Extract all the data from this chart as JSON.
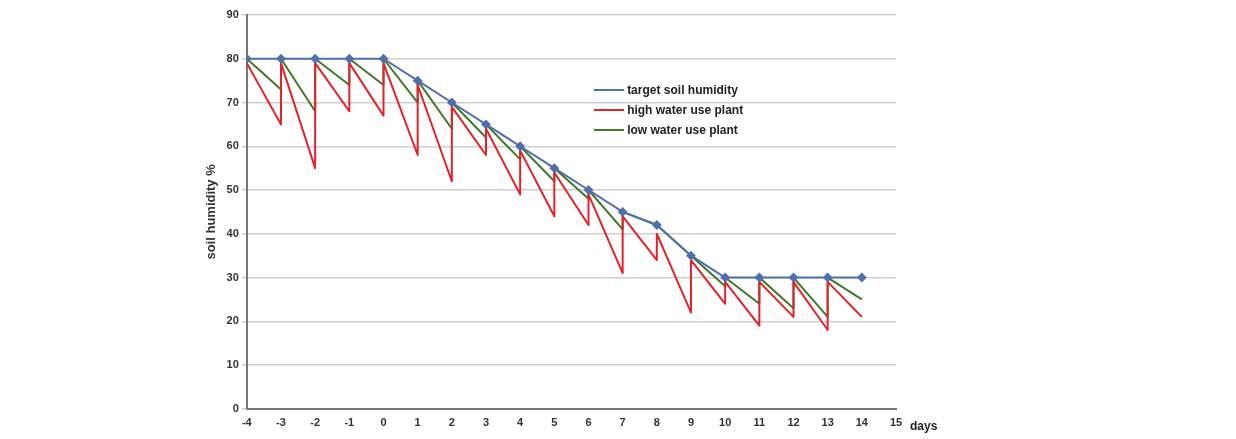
{
  "chart_data": {
    "type": "line",
    "xlabel": "days",
    "ylabel": "soil humidity %",
    "xlim": [
      -4,
      15
    ],
    "ylim": [
      0,
      90
    ],
    "xticks": [
      -4,
      -3,
      -2,
      -1,
      0,
      1,
      2,
      3,
      4,
      5,
      6,
      7,
      8,
      9,
      10,
      11,
      12,
      13,
      14,
      15
    ],
    "yticks": [
      0,
      10,
      20,
      30,
      40,
      50,
      60,
      70,
      80,
      90
    ],
    "grid": "y",
    "legend": "top right",
    "series": [
      {
        "name": "target soil humidity",
        "color": "#4f6fb0",
        "marker": "diamond",
        "x": [
          -4,
          -3,
          -2,
          -1,
          0,
          1,
          2,
          3,
          4,
          5,
          6,
          7,
          8,
          9,
          10,
          11,
          12,
          13,
          14
        ],
        "values": [
          80,
          80,
          80,
          80,
          80,
          75,
          70,
          65,
          60,
          55,
          50,
          45,
          42,
          35,
          30,
          30,
          30,
          30,
          30
        ]
      },
      {
        "name": "high water use plant",
        "color": "#e8202a",
        "marker": "none",
        "x": [
          -4,
          -3,
          -3,
          -2,
          -2,
          -1,
          -1,
          0,
          0,
          1,
          1,
          2,
          2,
          3,
          3,
          4,
          4,
          5,
          5,
          6,
          6,
          7,
          7,
          8,
          8,
          9,
          9,
          10,
          10,
          11,
          11,
          12,
          12,
          13,
          13,
          14
        ],
        "values": [
          79,
          65,
          79,
          55,
          79,
          68,
          79,
          67,
          79,
          58,
          74,
          52,
          69,
          58,
          64,
          49,
          59,
          44,
          54,
          42,
          49,
          31,
          44,
          34,
          40,
          22,
          34,
          24,
          29,
          19,
          29,
          21,
          29,
          18,
          29,
          21
        ]
      },
      {
        "name": "low water use plant",
        "color": "#3f7a2a",
        "marker": "none",
        "x": [
          -4,
          -3,
          -3,
          -2,
          -2,
          -1,
          -1,
          0,
          0,
          1,
          1,
          2,
          2,
          3,
          3,
          4,
          4,
          5,
          5,
          6,
          6,
          7,
          7,
          8,
          8,
          9,
          9,
          10,
          10,
          11,
          11,
          12,
          12,
          13,
          13,
          14
        ],
        "values": [
          80,
          73,
          80,
          68,
          80,
          74,
          80,
          74,
          80,
          70,
          75,
          64,
          70,
          62,
          65,
          57,
          60,
          52,
          55,
          48,
          50,
          41,
          45,
          42,
          42,
          35,
          35,
          28,
          30,
          24,
          30,
          23,
          30,
          21,
          30,
          25
        ]
      }
    ]
  }
}
